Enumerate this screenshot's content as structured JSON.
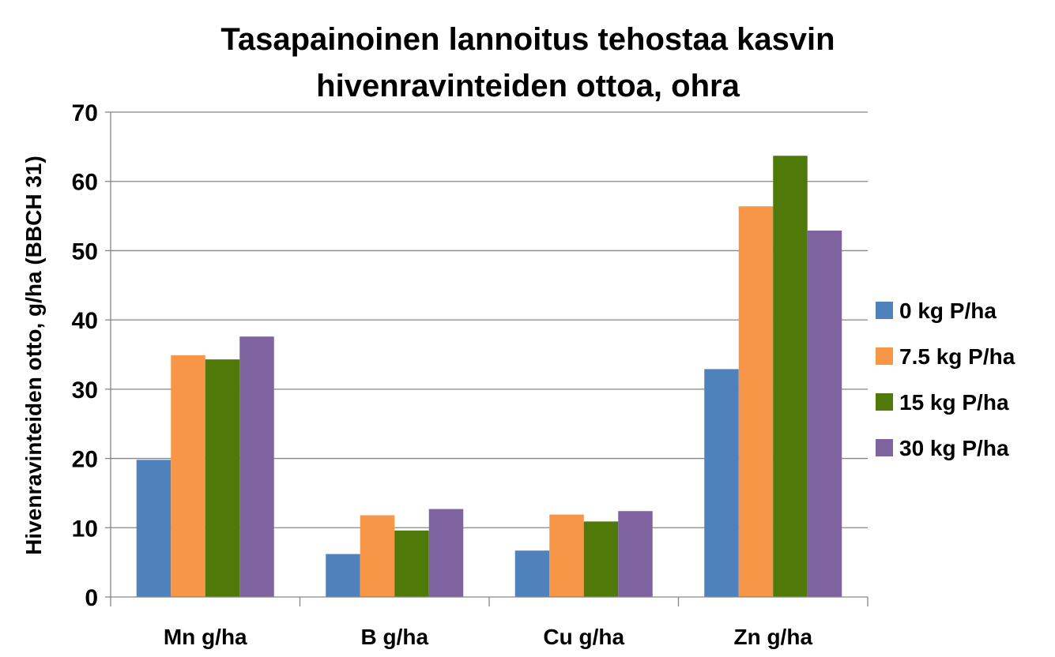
{
  "chart_data": {
    "type": "bar",
    "title_lines": [
      "Tasapainoinen lannoitus tehostaa kasvin",
      "hivenravinteiden ottoa, ohra"
    ],
    "xlabel": "",
    "ylabel": "Hivenravinteiden otto, g/ha (BBCH 31)",
    "ylim": [
      0,
      70
    ],
    "yticks": [
      0,
      10,
      20,
      30,
      40,
      50,
      60,
      70
    ],
    "grid": true,
    "legend_position": "right",
    "categories": [
      "Mn g/ha",
      "B g/ha",
      "Cu g/ha",
      "Zn g/ha"
    ],
    "series": [
      {
        "name": "0 kg P/ha",
        "color": "#4f81bd",
        "values": [
          19.8,
          6.2,
          6.7,
          32.9
        ]
      },
      {
        "name": "7.5 kg P/ha",
        "color": "#f79646",
        "values": [
          34.9,
          11.8,
          11.9,
          56.4
        ]
      },
      {
        "name": "15 kg P/ha",
        "color": "#4f7a0a",
        "values": [
          34.3,
          9.6,
          10.9,
          63.7
        ]
      },
      {
        "name": "30 kg P/ha",
        "color": "#8064a2",
        "values": [
          37.6,
          12.7,
          12.4,
          52.9
        ]
      }
    ]
  }
}
